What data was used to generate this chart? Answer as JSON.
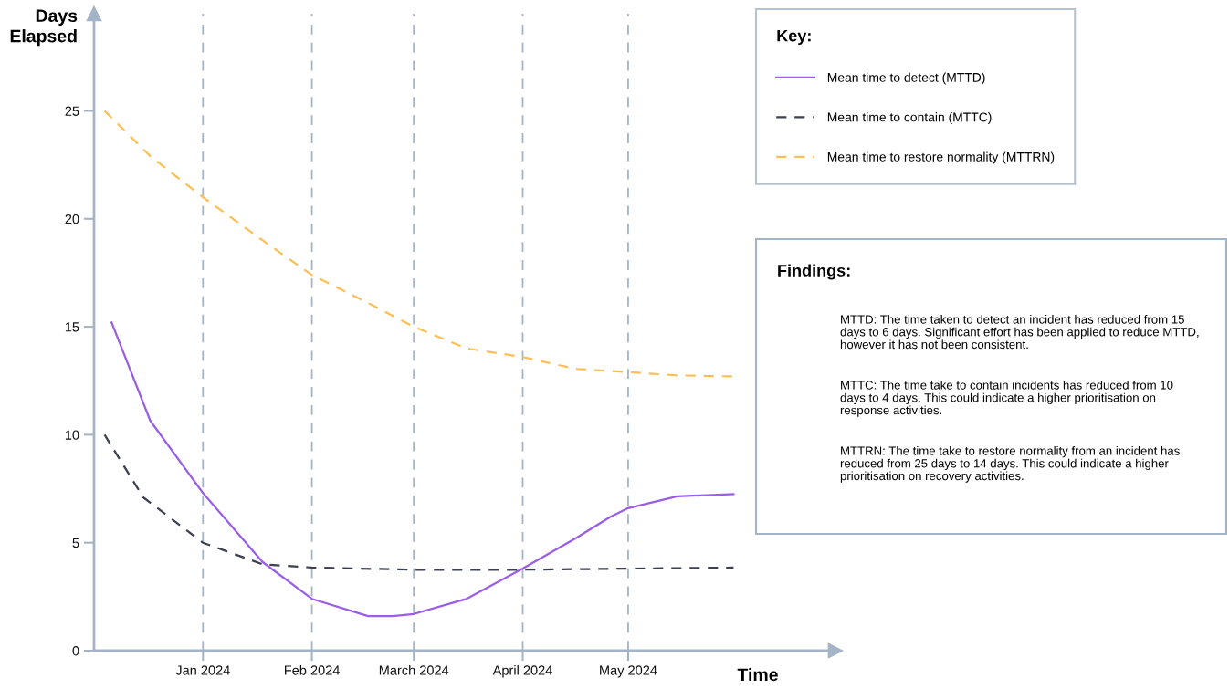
{
  "chart_data": {
    "type": "line",
    "ylabel": "Days\nElapsed",
    "xlabel": "Time",
    "legend_title": "Key:",
    "xlim": [
      "2023-12-01",
      "2024-06-29"
    ],
    "ylim": [
      0,
      29.5
    ],
    "xticks": [
      {
        "value": "2024-01-01",
        "label": "Jan 2024"
      },
      {
        "value": "2024-02-01",
        "label": "Feb 2024"
      },
      {
        "value": "2024-03-01",
        "label": "March 2024"
      },
      {
        "value": "2024-04-01",
        "label": "April 2024"
      },
      {
        "value": "2024-05-01",
        "label": "May 2024"
      }
    ],
    "yticks": [
      0,
      5,
      10,
      15,
      20,
      25
    ],
    "grid": "x",
    "legend": "right",
    "series": [
      {
        "name": "Mean time to detect (MTTD)",
        "color": "#9a5ee6",
        "line_style": "solid",
        "x": [
          "2023-12-06",
          "2023-12-17",
          "2024-01-01",
          "2024-01-18",
          "2024-02-01",
          "2024-02-17",
          "2024-02-24",
          "2024-03-01",
          "2024-03-16",
          "2024-04-01",
          "2024-04-16",
          "2024-04-26",
          "2024-05-01",
          "2024-05-15",
          "2024-05-31"
        ],
        "values": [
          15.2,
          10.65,
          7.3,
          4.1,
          2.4,
          1.6,
          1.6,
          1.7,
          2.4,
          3.8,
          5.2,
          6.2,
          6.6,
          7.15,
          7.25
        ]
      },
      {
        "name": "Mean time to contain (MTTC)",
        "color": "#3c4050",
        "line_style": "dashed",
        "x": [
          "2023-12-04",
          "2023-12-15",
          "2024-01-01",
          "2024-01-18",
          "2024-02-01",
          "2024-03-01",
          "2024-04-01",
          "2024-05-01",
          "2024-05-31"
        ],
        "values": [
          10,
          7.1,
          5.0,
          4.0,
          3.85,
          3.75,
          3.75,
          3.8,
          3.85
        ]
      },
      {
        "name": "Mean time to restore normality (MTTRN)",
        "color": "#fbbf55",
        "line_style": "dashed",
        "x": [
          "2023-12-04",
          "2023-12-17",
          "2024-01-01",
          "2024-01-18",
          "2024-02-01",
          "2024-02-17",
          "2024-03-01",
          "2024-03-16",
          "2024-04-01",
          "2024-04-16",
          "2024-05-01",
          "2024-05-15",
          "2024-05-31"
        ],
        "values": [
          25,
          22.9,
          21.0,
          19.0,
          17.4,
          16.1,
          15.0,
          14.0,
          13.6,
          13.05,
          12.9,
          12.75,
          12.7
        ]
      }
    ],
    "annotations": [
      "Findings:",
      "MTTD: The time taken to detect an incident has reduced from 15 days to 6 days. Significant effort has been applied to reduce MTTD, however it has not been consistent.",
      "MTTC: The time take to contain incidents has reduced from 10 days to 4 days. This could indicate a higher prioritisation on response activities.",
      "MTTRN: The time take to restore normality from an incident has reduced from 25 days to 14 days. This could indicate a higher prioritisation on recovery activities."
    ]
  }
}
